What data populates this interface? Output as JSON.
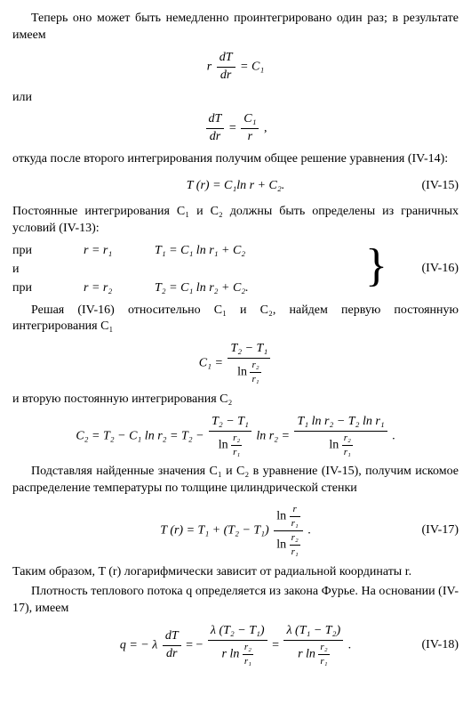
{
  "p1": "Теперь оно может быть немедленно проинтегрировано один раз; в результате  имеем",
  "p2": "или",
  "p3": "откуда после второго интегрирования получим общее решение уравнения (IV-14):",
  "p4": "Постоянные интегрирования C₁ и C₂ должны быть определены из граничных условий (IV-13):",
  "cond": {
    "r1a": "при",
    "r1b": "r = r₁",
    "r1c": "T₁ = C₁ ln r₁ + C₂",
    "r2a": "и",
    "r2b": "",
    "r2c": "",
    "r3a": "при",
    "r3b": "r = r₂",
    "r3c": "T₂ = C₁ ln r₂ + C₂."
  },
  "p5": "Решая (IV-16) относительно C₁ и C₂, найдем первую постоянную интегрирования C₁",
  "p6": "и вторую постоянную интегрирования C₂",
  "p7": "Подставляя найденные значения C₁ и C₂ в уравнение (IV-15), получим искомое распределение температуры по толщине цилиндрической стенки",
  "p8": "Таким образом, T (r) логарифмически зависит от радиальной координаты r.",
  "p9": "Плотность теплового потока q определяется из закона Фурье. На основании (IV-17), имеем",
  "eq": {
    "e1_lhs": "r",
    "e1_num": "dT",
    "e1_den": "dr",
    "e1_rhs": " = C₁",
    "e2_num": "dT",
    "e2_den": "dr",
    "e2_mid": " = ",
    "e2_num2": "C₁",
    "e2_den2": "r",
    "e2_comma": " ,",
    "e3": "T (r)  =  C₁ln  r + C₂.",
    "e4_lhs": "C₁ = ",
    "e4_num": "T₂ − T₁",
    "e4_den_pre": "ln ",
    "e4_den_num": "r₂",
    "e4_den_den": "r₁",
    "e5_lhs": "C₂ = T₂ − C₁ ln r₂ = T₂ − ",
    "e5_num": "T₂ − T₁",
    "e5_mid": " ln r₂ = ",
    "e5_num2": "T₁ ln r₂ − T₂ ln r₁",
    "e5_period": " .",
    "e6_lhs": "T (r) = T₁ + (T₂ − T₁) ",
    "e6_top_pre": "ln ",
    "e6_top_num": "r",
    "e6_top_den": "r₁",
    "e6_bot_pre": "ln ",
    "e6_bot_num": "r₂",
    "e6_bot_den": "r₁",
    "e6_period": " .",
    "e7_lhs": "q = − λ ",
    "e7_num1": "dT",
    "e7_den1": "dr",
    "e7_eq": " = − ",
    "e7_num2": "λ (T₂ − T₁)",
    "e7_den2_pre": "r ln ",
    "e7_eq2": " = ",
    "e7_num3": "λ (T₁ − T₂)",
    "e7_period": " ."
  },
  "eqnums": {
    "n15": "(IV-15)",
    "n16": "(IV-16)",
    "n17": "(IV-17)",
    "n18": "(IV-18)"
  }
}
